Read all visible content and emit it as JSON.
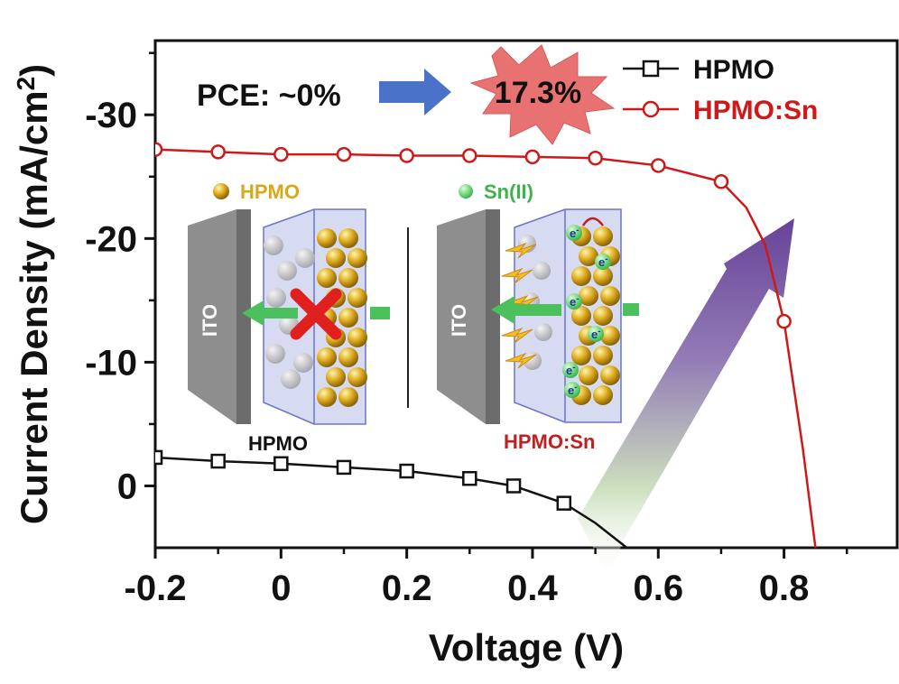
{
  "chart_data": {
    "type": "line",
    "xlabel": "Voltage (V)",
    "ylabel": "Current Density (mA/cm",
    "ylabel_sup": "2",
    "ylabel_close": ")",
    "xlim": [
      -0.2,
      0.98
    ],
    "ylim": [
      5,
      -36
    ],
    "x_ticks": [
      -0.2,
      0,
      0.2,
      0.4,
      0.6,
      0.8
    ],
    "x_tick_labels": [
      "-0.2",
      "0",
      "0.2",
      "0.4",
      "0.6",
      "0.8"
    ],
    "y_ticks": [
      0,
      -10,
      -20,
      -30
    ],
    "y_tick_labels": [
      "0",
      "-10",
      "-20",
      "-30"
    ],
    "legend_position": "top-right",
    "series": [
      {
        "name": "HPMO",
        "color": "#111111",
        "marker": "square",
        "x": [
          -0.2,
          -0.1,
          0.0,
          0.1,
          0.2,
          0.3,
          0.37,
          0.45
        ],
        "y": [
          -2.3,
          -2.0,
          -1.8,
          -1.5,
          -1.2,
          -0.6,
          0.0,
          1.4
        ],
        "curve_x": [
          -0.2,
          -0.1,
          0.0,
          0.1,
          0.2,
          0.3,
          0.37,
          0.45,
          0.5,
          0.55
        ],
        "curve_y": [
          -2.3,
          -2.0,
          -1.8,
          -1.5,
          -1.2,
          -0.6,
          0.0,
          1.4,
          3.0,
          5.0
        ]
      },
      {
        "name": "HPMO:Sn",
        "color": "#d01818",
        "marker": "circle",
        "x": [
          -0.2,
          -0.1,
          0.0,
          0.1,
          0.2,
          0.3,
          0.4,
          0.5,
          0.6,
          0.7,
          0.8
        ],
        "y": [
          -27.2,
          -27.0,
          -26.8,
          -26.8,
          -26.7,
          -26.7,
          -26.6,
          -26.5,
          -25.9,
          -24.6,
          -13.3
        ],
        "curve_x": [
          -0.2,
          -0.1,
          0.0,
          0.1,
          0.2,
          0.3,
          0.4,
          0.5,
          0.6,
          0.7,
          0.74,
          0.77,
          0.8,
          0.83,
          0.85
        ],
        "curve_y": [
          -27.2,
          -27.0,
          -26.8,
          -26.8,
          -26.7,
          -26.7,
          -26.6,
          -26.5,
          -25.9,
          -24.6,
          -22.5,
          -19.5,
          -13.3,
          -3.0,
          5.0
        ]
      }
    ]
  },
  "annotations": {
    "pce_before": "PCE: ~0%",
    "pce_after": "17.3%",
    "burst_color": "#e87272",
    "arrow_color": "#4a73c8"
  },
  "inset": {
    "left_legend": "HPMO",
    "right_legend": "Sn(II)",
    "ito_label": "ITO",
    "left_caption": "HPMO",
    "right_caption": "HPMO:Sn",
    "electron_label": "e",
    "electron_sup": "-"
  }
}
